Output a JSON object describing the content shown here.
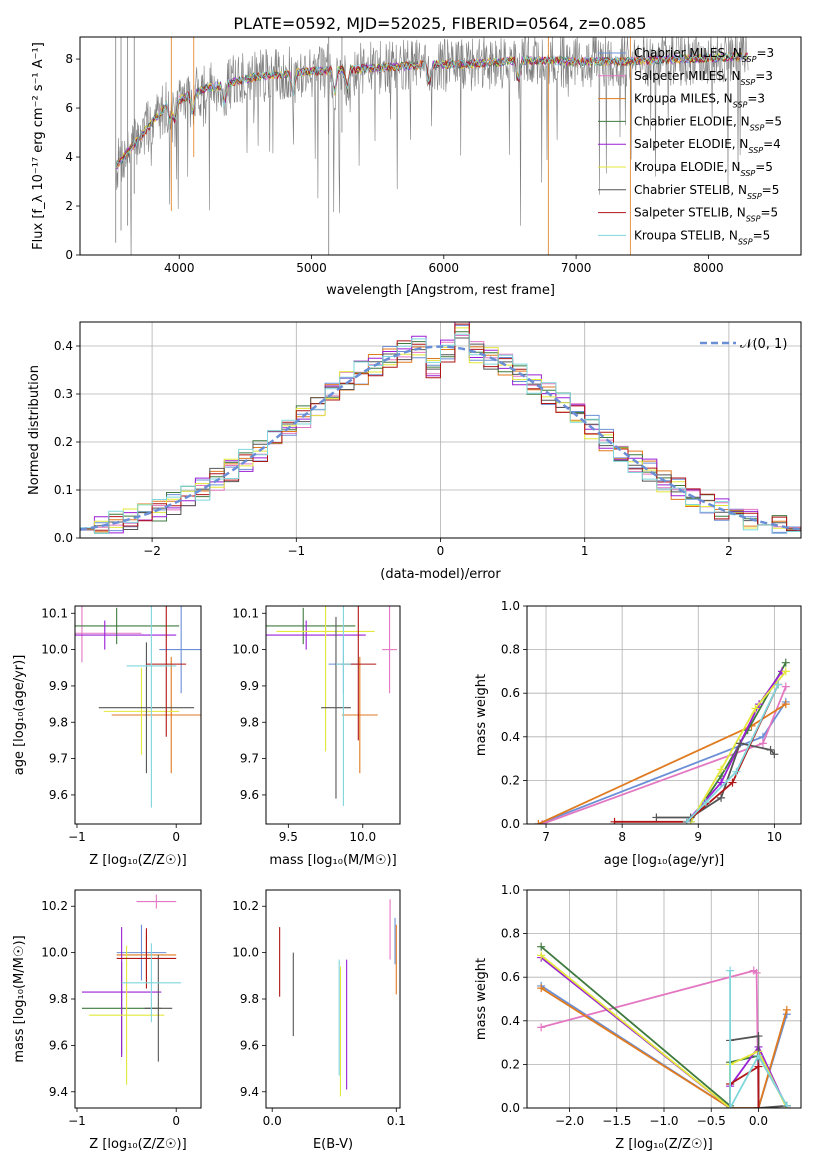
{
  "figure_title": "PLATE=0592, MJD=52025, FIBERID=0564, z=0.085",
  "series_styles": [
    {
      "name": "Chabrier MILES",
      "nssp": "3",
      "color": "#6b8fd6"
    },
    {
      "name": "Salpeter MILES",
      "nssp": "3",
      "color": "#e377c2"
    },
    {
      "name": "Kroupa MILES",
      "nssp": "3",
      "color": "#e07a1f"
    },
    {
      "name": "Chabrier ELODIE",
      "nssp": "5",
      "color": "#3f7a3f"
    },
    {
      "name": "Salpeter ELODIE",
      "nssp": "4",
      "color": "#9a1fd6"
    },
    {
      "name": "Kroupa ELODIE",
      "nssp": "5",
      "color": "#e3e83a"
    },
    {
      "name": "Chabrier STELIB",
      "nssp": "5",
      "color": "#555555"
    },
    {
      "name": "Salpeter STELIB",
      "nssp": "5",
      "color": "#b01515"
    },
    {
      "name": "Kroupa STELIB",
      "nssp": "5",
      "color": "#7fd6dc"
    }
  ],
  "chart_data": [
    {
      "id": "spectrum",
      "type": "line",
      "title": "PLATE=0592, MJD=52025, FIBERID=0564, z=0.085",
      "xlabel": "wavelength [Angstrom, rest frame]",
      "ylabel": "Flux [f_λ 10⁻¹⁷ erg cm⁻² s⁻¹ A⁻¹]",
      "xlim": [
        3250,
        8700
      ],
      "ylim": [
        0,
        8.9
      ],
      "xticks": [
        "4000",
        "5000",
        "6000",
        "7000",
        "8000"
      ],
      "yticks": [
        "0",
        "2",
        "4",
        "6",
        "8"
      ],
      "legend": "upper right",
      "continuum": {
        "x": [
          3520,
          3700,
          3900,
          4200,
          4600,
          5000,
          5400,
          5800,
          6200,
          6600,
          7000,
          7400,
          7800,
          8300
        ],
        "y": [
          3.6,
          4.8,
          6.1,
          6.8,
          7.3,
          7.5,
          7.6,
          7.75,
          7.8,
          7.95,
          7.9,
          7.9,
          8.0,
          8.1
        ]
      }
    },
    {
      "id": "residuals",
      "type": "line",
      "xlabel": "(data-model)/error",
      "ylabel": "Normed distribution",
      "xlim": [
        -2.5,
        2.5
      ],
      "ylim": [
        0,
        0.45
      ],
      "xticks": [
        "−2",
        "−1",
        "0",
        "1",
        "2"
      ],
      "yticks": [
        "0.0",
        "0.1",
        "0.2",
        "0.3",
        "0.4"
      ],
      "grid": true,
      "legend_label": "𝒩(0, 1)",
      "legend": "upper right",
      "bin_width": 0.1
    },
    {
      "id": "age-vs-Z",
      "type": "scatter",
      "xlabel": "Z [log₁₀(Z/Z☉)]",
      "ylabel": "age [log₁₀(age/yr)]",
      "xlim": [
        -1.02,
        0.25
      ],
      "ylim": [
        9.52,
        10.12
      ],
      "xticks": [
        "−1",
        "0"
      ],
      "yticks": [
        "9.6",
        "9.7",
        "9.8",
        "9.9",
        "10.0",
        "10.1"
      ],
      "points": [
        {
          "s": 0,
          "x": 0.05,
          "y": 10.0,
          "xerr": 0.22,
          "yerr": 0.12
        },
        {
          "s": 1,
          "x": -0.95,
          "y": 10.045,
          "xerr": 0.6,
          "yerr": 0.08
        },
        {
          "s": 2,
          "x": -0.05,
          "y": 9.82,
          "xerr": 0.6,
          "yerr": 0.16
        },
        {
          "s": 3,
          "x": -0.6,
          "y": 10.065,
          "xerr": 0.63,
          "yerr": 0.05
        },
        {
          "s": 4,
          "x": -0.72,
          "y": 10.04,
          "xerr": 0.72,
          "yerr": 0.04
        },
        {
          "s": 5,
          "x": -0.35,
          "y": 9.83,
          "xerr": 0.38,
          "yerr": 0.12
        },
        {
          "s": 6,
          "x": -0.3,
          "y": 9.84,
          "xerr": 0.48,
          "yerr": 0.18
        },
        {
          "s": 7,
          "x": -0.1,
          "y": 9.96,
          "xerr": 0.2,
          "yerr": 0.2
        },
        {
          "s": 8,
          "x": -0.25,
          "y": 9.955,
          "xerr": 0.25,
          "yerr": 0.39
        }
      ]
    },
    {
      "id": "age-vs-mass",
      "type": "scatter",
      "xlabel": "mass [log₁₀(M/M☉)]",
      "ylabel": "",
      "xlim": [
        9.35,
        10.25
      ],
      "ylim": [
        9.52,
        10.12
      ],
      "xticks": [
        "9.5",
        "10.0"
      ],
      "yticks": [
        "9.6",
        "9.7",
        "9.8",
        "9.9",
        "10.0",
        "10.1"
      ],
      "points": [
        {
          "s": 0,
          "x": 9.87,
          "y": 9.96,
          "xerr": 0.1,
          "yerr": 0.08
        },
        {
          "s": 1,
          "x": 10.18,
          "y": 10.0,
          "xerr": 0.05,
          "yerr": 0.12
        },
        {
          "s": 2,
          "x": 9.98,
          "y": 9.82,
          "xerr": 0.12,
          "yerr": 0.16
        },
        {
          "s": 3,
          "x": 9.6,
          "y": 10.065,
          "xerr": 0.35,
          "yerr": 0.05
        },
        {
          "s": 4,
          "x": 9.62,
          "y": 10.04,
          "xerr": 0.4,
          "yerr": 0.04
        },
        {
          "s": 5,
          "x": 9.75,
          "y": 10.05,
          "xerr": 0.33,
          "yerr": 0.33
        },
        {
          "s": 6,
          "x": 9.82,
          "y": 9.84,
          "xerr": 0.1,
          "yerr": 0.25
        },
        {
          "s": 7,
          "x": 9.97,
          "y": 9.96,
          "xerr": 0.12,
          "yerr": 0.21
        },
        {
          "s": 8,
          "x": 9.87,
          "y": 9.96,
          "xerr": 0.05,
          "yerr": 0.39
        }
      ]
    },
    {
      "id": "weight-vs-age",
      "type": "line",
      "xlabel": "age [log₁₀(age/yr)]",
      "ylabel": "mass weight",
      "xlim": [
        6.75,
        10.35
      ],
      "ylim": [
        0,
        1.0
      ],
      "xticks": [
        "7",
        "8",
        "9",
        "10"
      ],
      "yticks": [
        "0.0",
        "0.2",
        "0.4",
        "0.6",
        "0.8",
        "1.0"
      ],
      "grid": true,
      "series": [
        {
          "s": 0,
          "x": [
            6.9,
            9.85,
            10.15
          ],
          "y": [
            0.0,
            0.4,
            0.56
          ]
        },
        {
          "s": 1,
          "x": [
            6.95,
            9.85,
            10.15
          ],
          "y": [
            0.0,
            0.37,
            0.63
          ]
        },
        {
          "s": 2,
          "x": [
            6.9,
            9.7,
            10.15
          ],
          "y": [
            0.0,
            0.45,
            0.55
          ]
        },
        {
          "s": 3,
          "x": [
            8.9,
            9.3,
            9.65,
            10.15
          ],
          "y": [
            0.01,
            0.22,
            0.43,
            0.74
          ]
        },
        {
          "s": 4,
          "x": [
            8.85,
            9.3,
            9.8,
            10.1
          ],
          "y": [
            0.01,
            0.19,
            0.55,
            0.7
          ]
        },
        {
          "s": 5,
          "x": [
            8.9,
            9.3,
            9.75,
            10.15
          ],
          "y": [
            0.01,
            0.25,
            0.53,
            0.7
          ]
        },
        {
          "s": 6,
          "x": [
            8.45,
            8.9,
            9.3,
            9.55,
            9.95,
            10.0
          ],
          "y": [
            0.03,
            0.03,
            0.12,
            0.37,
            0.34,
            0.32
          ]
        },
        {
          "s": 7,
          "x": [
            7.9,
            8.85,
            9.45,
            10.05
          ],
          "y": [
            0.01,
            0.01,
            0.19,
            0.64
          ]
        },
        {
          "s": 8,
          "x": [
            8.85,
            9.1,
            9.5,
            10.05
          ],
          "y": [
            0.01,
            0.1,
            0.24,
            0.64
          ]
        }
      ]
    },
    {
      "id": "mass-vs-Z",
      "type": "scatter",
      "xlabel": "Z [log₁₀(Z/Z☉)]",
      "ylabel": "mass [log₁₀(M/M☉)]",
      "xlim": [
        -1.02,
        0.25
      ],
      "ylim": [
        9.33,
        10.27
      ],
      "xticks": [
        "−1",
        "0"
      ],
      "yticks": [
        "9.4",
        "9.6",
        "9.8",
        "10.0",
        "10.2"
      ],
      "points": [
        {
          "s": 0,
          "x": -0.35,
          "y": 10.0,
          "xerr": 0.25,
          "yerr": 0.12
        },
        {
          "s": 1,
          "x": -0.2,
          "y": 10.22,
          "xerr": 0.2,
          "yerr": 0.03
        },
        {
          "s": 2,
          "x": -0.3,
          "y": 9.99,
          "xerr": 0.3,
          "yerr": 0.1
        },
        {
          "s": 3,
          "x": -0.55,
          "y": 9.76,
          "xerr": 0.4,
          "yerr": 0.2
        },
        {
          "s": 4,
          "x": -0.55,
          "y": 9.83,
          "xerr": 0.4,
          "yerr": 0.28
        },
        {
          "s": 5,
          "x": -0.5,
          "y": 9.73,
          "xerr": 0.38,
          "yerr": 0.3
        },
        {
          "s": 6,
          "x": -0.18,
          "y": 9.76,
          "xerr": 0.14,
          "yerr": 0.23
        },
        {
          "s": 7,
          "x": -0.3,
          "y": 9.975,
          "xerr": 0.3,
          "yerr": 0.13
        },
        {
          "s": 8,
          "x": -0.25,
          "y": 9.87,
          "xerr": 0.3,
          "yerr": 0.17
        }
      ]
    },
    {
      "id": "mass-vs-ebv",
      "type": "scatter",
      "xlabel": "E(B-V)",
      "ylabel": "",
      "xlim": [
        -0.005,
        0.103
      ],
      "ylim": [
        9.33,
        10.27
      ],
      "xticks": [
        "0.0",
        "0.1"
      ],
      "yticks": [
        "9.4",
        "9.6",
        "9.8",
        "10.0",
        "10.2"
      ],
      "points": [
        {
          "s": 0,
          "x": 0.099,
          "y": 10.05,
          "xerr": 0,
          "yerr": 0.1
        },
        {
          "s": 1,
          "x": 0.095,
          "y": 10.1,
          "xerr": 0,
          "yerr": 0.13
        },
        {
          "s": 2,
          "x": 0.1,
          "y": 9.97,
          "xerr": 0,
          "yerr": 0.15
        },
        {
          "s": 4,
          "x": 0.06,
          "y": 9.69,
          "xerr": 0,
          "yerr": 0.28
        },
        {
          "s": 5,
          "x": 0.055,
          "y": 9.66,
          "xerr": 0,
          "yerr": 0.28
        },
        {
          "s": 6,
          "x": 0.017,
          "y": 9.82,
          "xerr": 0,
          "yerr": 0.18
        },
        {
          "s": 7,
          "x": 0.006,
          "y": 9.96,
          "xerr": 0,
          "yerr": 0.15
        },
        {
          "s": 8,
          "x": 0.054,
          "y": 9.72,
          "xerr": 0,
          "yerr": 0.25
        }
      ]
    },
    {
      "id": "weight-vs-Z",
      "type": "line",
      "xlabel": "Z [log₁₀(Z/Z☉)]",
      "ylabel": "mass weight",
      "xlim": [
        -2.45,
        0.45
      ],
      "ylim": [
        0,
        1.0
      ],
      "xticks": [
        "−2.0",
        "−1.5",
        "−1.0",
        "−0.5",
        "0.0"
      ],
      "yticks": [
        "0.0",
        "0.2",
        "0.4",
        "0.6",
        "0.8",
        "1.0"
      ],
      "grid": true,
      "series": [
        {
          "s": 0,
          "x": [
            -2.3,
            -0.3,
            0.0,
            0.3
          ],
          "y": [
            0.56,
            0.0,
            0.0,
            0.43
          ]
        },
        {
          "s": 1,
          "x": [
            -2.3,
            -0.05,
            -0.02,
            0.0
          ],
          "y": [
            0.37,
            0.63,
            0.62,
            0.0
          ]
        },
        {
          "s": 2,
          "x": [
            -2.3,
            -0.3,
            0.0,
            0.3
          ],
          "y": [
            0.55,
            0.0,
            0.0,
            0.45
          ]
        },
        {
          "s": 3,
          "x": [
            -2.3,
            -0.3,
            -0.3,
            0.0,
            0.3
          ],
          "y": [
            0.74,
            0.01,
            0.21,
            0.24,
            0.01
          ]
        },
        {
          "s": 4,
          "x": [
            -2.3,
            -0.3,
            -0.3,
            0.0,
            0.3
          ],
          "y": [
            0.69,
            0.0,
            0.1,
            0.28,
            0.0
          ]
        },
        {
          "s": 5,
          "x": [
            -2.3,
            -0.3,
            -0.3,
            0.0,
            0.3
          ],
          "y": [
            0.7,
            0.0,
            0.2,
            0.26,
            0.0
          ]
        },
        {
          "s": 6,
          "x": [
            -0.3,
            0.0,
            0.0,
            0.3
          ],
          "y": [
            0.31,
            0.33,
            0.0,
            0.01
          ]
        },
        {
          "s": 7,
          "x": [
            -0.3,
            -0.3,
            0.0,
            0.0
          ],
          "y": [
            0.0,
            0.11,
            0.19,
            0.0
          ]
        },
        {
          "s": 8,
          "x": [
            -0.3,
            -0.3,
            0.0,
            0.3
          ],
          "y": [
            0.63,
            0.0,
            0.24,
            0.01
          ]
        }
      ]
    }
  ]
}
